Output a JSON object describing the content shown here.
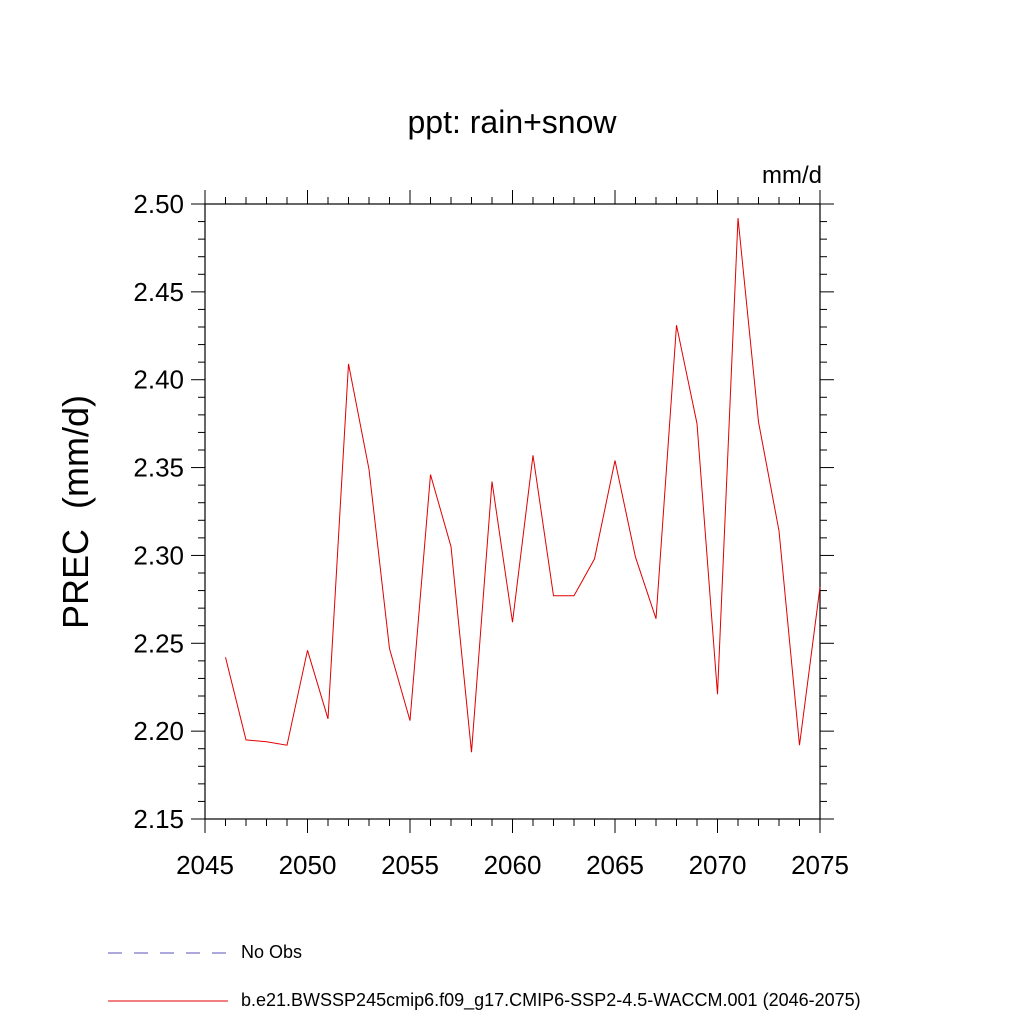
{
  "title": "ppt: rain+snow",
  "units_label": "mm/d",
  "legend": [
    {
      "label": "No Obs",
      "color": "#5a4fb8",
      "style": "dashed"
    },
    {
      "label": "b.e21.BWSSP245cmip6.f09_g17.CMIP6-SSP2-4.5-WACCM.001 (2046-2075)",
      "color": "#e00000",
      "style": "solid"
    }
  ],
  "chart_data": {
    "type": "line",
    "title": "ppt: rain+snow",
    "xlabel": "",
    "ylabel": "PREC  (mm/d)",
    "xlim": [
      2045,
      2075
    ],
    "ylim": [
      2.15,
      2.5
    ],
    "xticks": [
      "2045",
      "2050",
      "2055",
      "2060",
      "2065",
      "2070",
      "2075"
    ],
    "yticks": [
      "2.15",
      "2.20",
      "2.25",
      "2.30",
      "2.35",
      "2.40",
      "2.45",
      "2.50"
    ],
    "grid": false,
    "legend_position": "bottom",
    "series": [
      {
        "name": "b.e21.BWSSP245cmip6.f09_g17.CMIP6-SSP2-4.5-WACCM.001 (2046-2075)",
        "color": "#e00000",
        "x": [
          2046,
          2047,
          2048,
          2049,
          2050,
          2051,
          2052,
          2053,
          2054,
          2055,
          2056,
          2057,
          2058,
          2059,
          2060,
          2061,
          2062,
          2063,
          2064,
          2065,
          2066,
          2067,
          2068,
          2069,
          2070,
          2071,
          2072,
          2073,
          2074,
          2075
        ],
        "y": [
          2.242,
          2.195,
          2.194,
          2.192,
          2.246,
          2.207,
          2.409,
          2.349,
          2.247,
          2.206,
          2.346,
          2.305,
          2.188,
          2.342,
          2.262,
          2.357,
          2.277,
          2.277,
          2.298,
          2.354,
          2.299,
          2.264,
          2.431,
          2.375,
          2.221,
          2.492,
          2.376,
          2.314,
          2.192,
          2.282
        ]
      }
    ]
  }
}
